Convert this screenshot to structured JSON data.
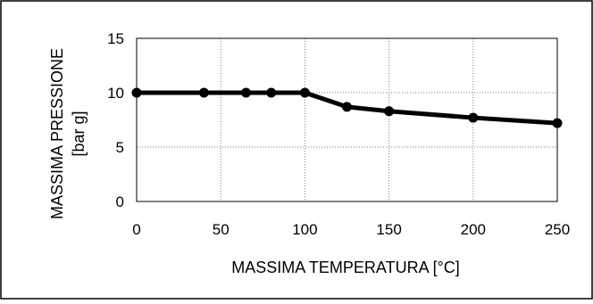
{
  "chart_data": {
    "type": "line",
    "title": "",
    "xlabel": "MASSIMA TEMPERATURA [°C]",
    "ylabel_lines": [
      "MASSIMA PRESSIONE",
      "[bar g]"
    ],
    "x": [
      0,
      40,
      65,
      80,
      100,
      125,
      150,
      200,
      250
    ],
    "series": [
      {
        "values": [
          10,
          10,
          10,
          10,
          10,
          8.7,
          8.3,
          7.7,
          7.2
        ]
      }
    ],
    "xlim": [
      0,
      250
    ],
    "ylim": [
      0,
      15
    ],
    "x_ticks": [
      0,
      50,
      100,
      150,
      200,
      250
    ],
    "y_ticks": [
      0,
      5,
      10,
      15
    ],
    "grid": true,
    "legend": "none",
    "colors": {
      "line": "#000000",
      "grid": "#808080",
      "frame": "#000000"
    }
  }
}
